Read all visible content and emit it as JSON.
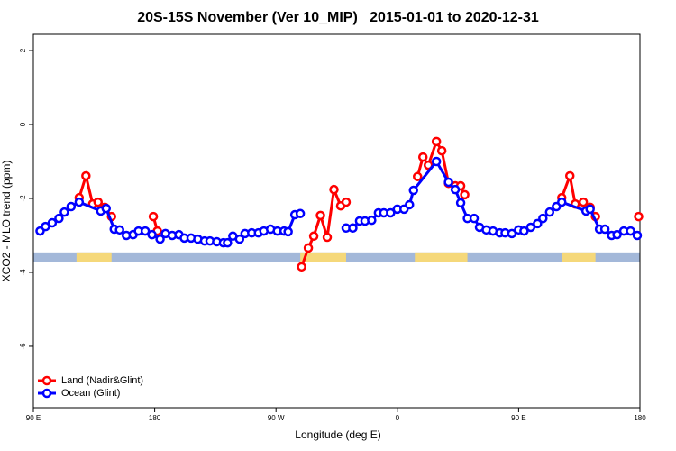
{
  "chart_data": {
    "type": "line",
    "title": "20S-15S November (Ver 10_MIP)   2015-01-01 to 2020-12-31",
    "x_label": "Longitude (deg E)",
    "y_label": "XCO2 - MLO trend (ppm)",
    "xlim": [
      90,
      540
    ],
    "ylim": [
      -7.66,
      2.44
    ],
    "xticks": [
      {
        "value": 90,
        "label": "90 E"
      },
      180,
      {
        "value": 270,
        "label": "90 W"
      },
      {
        "value": 360,
        "label": "0"
      },
      {
        "value": 450,
        "label": "90 E"
      },
      {
        "value": 540,
        "label": "180"
      }
    ],
    "yticks": [
      2,
      0,
      -2,
      -4,
      -6
    ],
    "legend": "bottomleft",
    "surface_band": {
      "ylim": [
        -3.73,
        -3.46
      ],
      "ocean_color": "#a3b8d9",
      "land_color": "#f5d87a",
      "land_ranges": [
        [
          122,
          148
        ],
        [
          288,
          322
        ],
        [
          373,
          412
        ],
        [
          482,
          507
        ]
      ]
    },
    "series": [
      {
        "name": "Land (Nadir&Glint)",
        "color": "#ff0000",
        "x": [
          124,
          129,
          134,
          138,
          143,
          148,
          160,
          179,
          182,
          240,
          289,
          294,
          298,
          303,
          308,
          313,
          318,
          322,
          350,
          375,
          379,
          383,
          389,
          393,
          398,
          403,
          407,
          410,
          450,
          482,
          488,
          492,
          498,
          503,
          507,
          520,
          539
        ],
        "values": [
          -1.98,
          -1.39,
          -2.15,
          -2.1,
          -2.24,
          -2.49,
          null,
          -2.49,
          -2.88,
          null,
          -3.85,
          -3.34,
          -3.02,
          -2.46,
          -3.05,
          -1.76,
          -2.2,
          -2.1,
          null,
          -1.41,
          -0.88,
          -1.1,
          -0.46,
          -0.71,
          -1.59,
          -1.66,
          -1.66,
          -1.9,
          null,
          -1.98,
          -1.39,
          -2.15,
          -2.1,
          -2.24,
          -2.49,
          null,
          -2.49
        ]
      },
      {
        "name": "Ocean (Glint)",
        "color": "#0000ff",
        "x": [
          95,
          99,
          104,
          109,
          113,
          118,
          124,
          140,
          144,
          150,
          154,
          159,
          164,
          168,
          173,
          178,
          184,
          188,
          193,
          198,
          202,
          207,
          212,
          217,
          221,
          226,
          231,
          234,
          238,
          243,
          247,
          252,
          257,
          261,
          266,
          271,
          276,
          279,
          284,
          288,
          305,
          322,
          327,
          332,
          336,
          341,
          346,
          350,
          355,
          360,
          365,
          369,
          372,
          389,
          398,
          403,
          407,
          412,
          417,
          421,
          426,
          431,
          436,
          440,
          445,
          450,
          454,
          459,
          464,
          468,
          473,
          478,
          482,
          500,
          503,
          510,
          514,
          519,
          523,
          528,
          533,
          538
        ],
        "values": [
          -2.88,
          -2.76,
          -2.66,
          -2.54,
          -2.37,
          -2.22,
          -2.1,
          -2.34,
          -2.27,
          -2.83,
          -2.85,
          -3.0,
          -2.98,
          -2.88,
          -2.88,
          -2.98,
          -3.1,
          -2.95,
          -3.0,
          -2.98,
          -3.07,
          -3.07,
          -3.1,
          -3.15,
          -3.15,
          -3.17,
          -3.2,
          -3.2,
          -3.02,
          -3.1,
          -2.95,
          -2.93,
          -2.93,
          -2.88,
          -2.83,
          -2.88,
          -2.88,
          -2.9,
          -2.44,
          -2.41,
          null,
          -2.8,
          -2.8,
          -2.61,
          -2.61,
          -2.59,
          -2.39,
          -2.39,
          -2.39,
          -2.29,
          -2.29,
          -2.17,
          -1.78,
          -1.0,
          -1.56,
          -1.76,
          -2.12,
          -2.54,
          -2.54,
          -2.78,
          -2.85,
          -2.88,
          -2.93,
          -2.93,
          -2.95,
          -2.85,
          -2.88,
          -2.78,
          -2.68,
          -2.54,
          -2.37,
          -2.22,
          -2.1,
          -2.34,
          -2.29,
          -2.83,
          -2.83,
          -3.0,
          -2.98,
          -2.88,
          -2.88,
          -3.0
        ]
      }
    ]
  }
}
